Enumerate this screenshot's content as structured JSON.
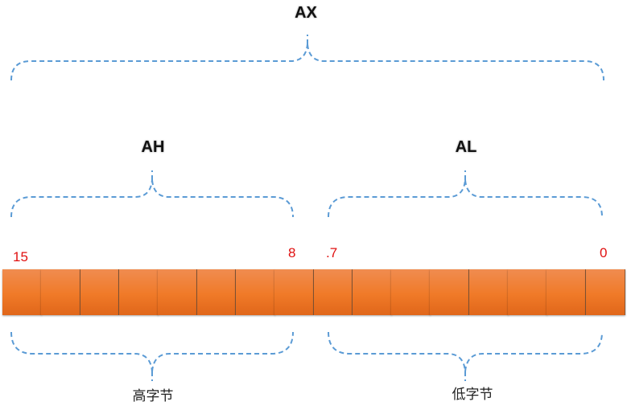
{
  "registers": {
    "full": "AX",
    "high": "AH",
    "low": "AL"
  },
  "bit_labels": {
    "b15": "15",
    "b8": "8",
    "b7": ".7",
    "b0": "0"
  },
  "byte_labels": {
    "high": "高字节",
    "low": "低字节"
  },
  "bit_count": 16,
  "colors": {
    "cell": "#f07a28",
    "brace": "#5b9bd5",
    "bit_label": "#e01010"
  }
}
